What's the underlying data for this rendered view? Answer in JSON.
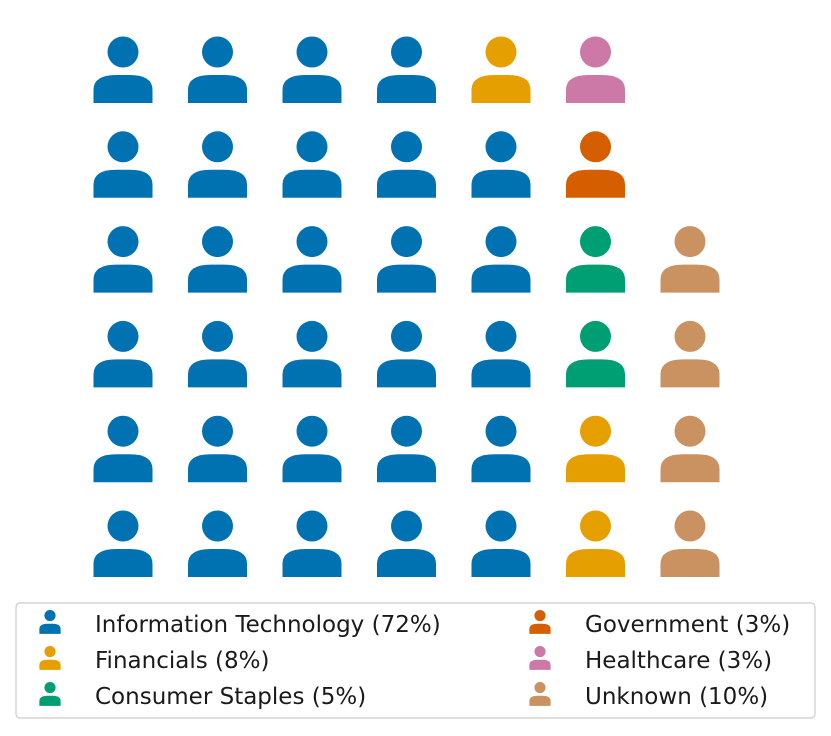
{
  "chart_data": {
    "type": "waffle-pictogram",
    "icon": "person-icon",
    "grid": {
      "rows": 6,
      "columns": 7,
      "fill_order": "column-major, bottom-to-top"
    },
    "series": [
      {
        "name": "Information Technology (72%)",
        "percent": 72,
        "count": 29,
        "color": "#0072b2"
      },
      {
        "name": "Financials (8%)",
        "percent": 8,
        "count": 3,
        "color": "#e69f00"
      },
      {
        "name": "Consumer Staples (5%)",
        "percent": 5,
        "count": 2,
        "color": "#009e73"
      },
      {
        "name": "Government (3%)",
        "percent": 3,
        "count": 1,
        "color": "#d55e00"
      },
      {
        "name": "Healthcare (3%)",
        "percent": 3,
        "count": 1,
        "color": "#cc79a7"
      },
      {
        "name": "Unknown (10%)",
        "percent": 10,
        "count": 4,
        "color": "#ca9161"
      }
    ],
    "legend": {
      "position": "bottom",
      "columns": 2
    }
  }
}
